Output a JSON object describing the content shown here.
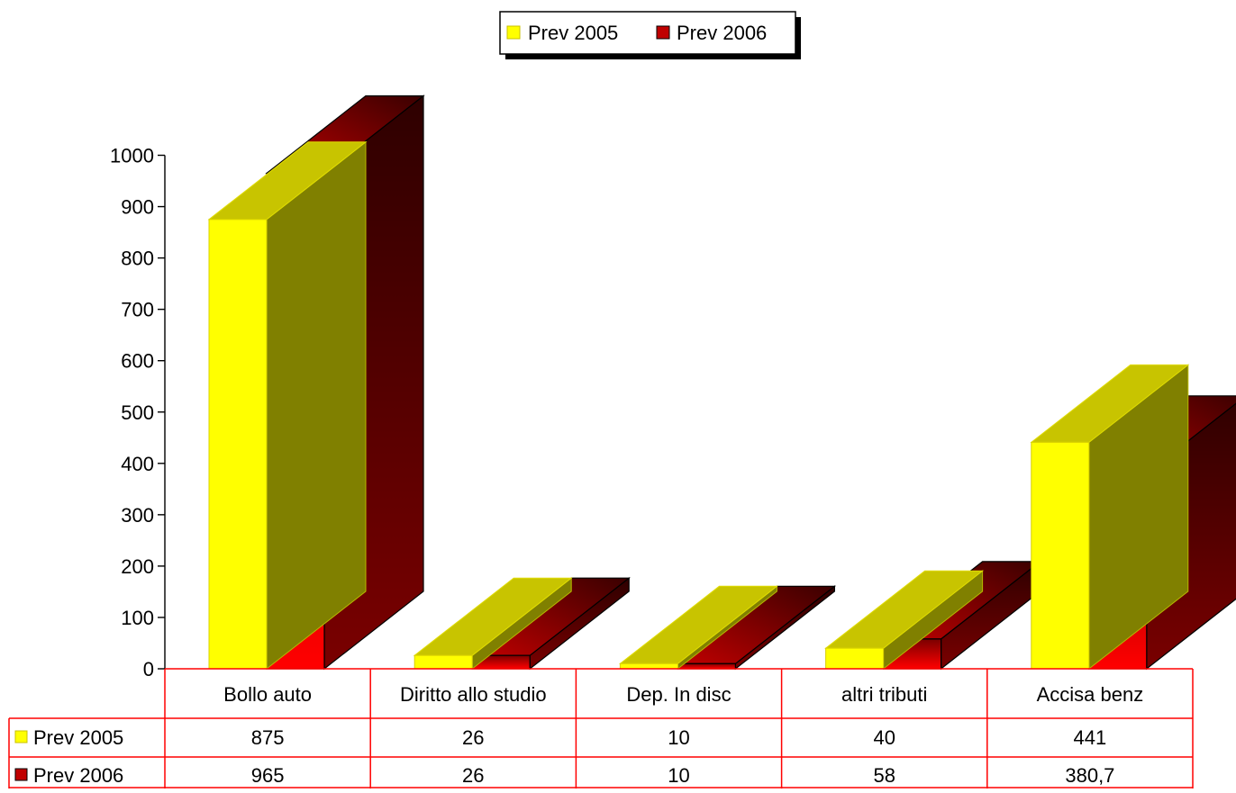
{
  "chart_data": {
    "type": "bar",
    "variant": "3d-clustered-with-data-table",
    "categories": [
      "Bollo auto",
      "Diritto allo studio",
      "Dep. In disc",
      "altri tributi",
      "Accisa benz"
    ],
    "series": [
      {
        "name": "Prev 2005",
        "values": [
          875,
          26,
          10,
          40,
          441
        ],
        "labels": [
          "875",
          "26",
          "10",
          "40",
          "441"
        ],
        "color": "#ffff00"
      },
      {
        "name": "Prev 2006",
        "values": [
          965,
          26,
          10,
          58,
          380.7
        ],
        "labels": [
          "965",
          "26",
          "10",
          "58",
          "380,7"
        ],
        "color": "#ff0000"
      }
    ],
    "y_ticks": [
      "0",
      "100",
      "200",
      "300",
      "400",
      "500",
      "600",
      "700",
      "800",
      "900",
      "1000"
    ],
    "ylim": [
      0,
      1000
    ],
    "legend_position": "top-center",
    "grid": false,
    "data_table": true,
    "table_border_color": "#ff0000"
  }
}
